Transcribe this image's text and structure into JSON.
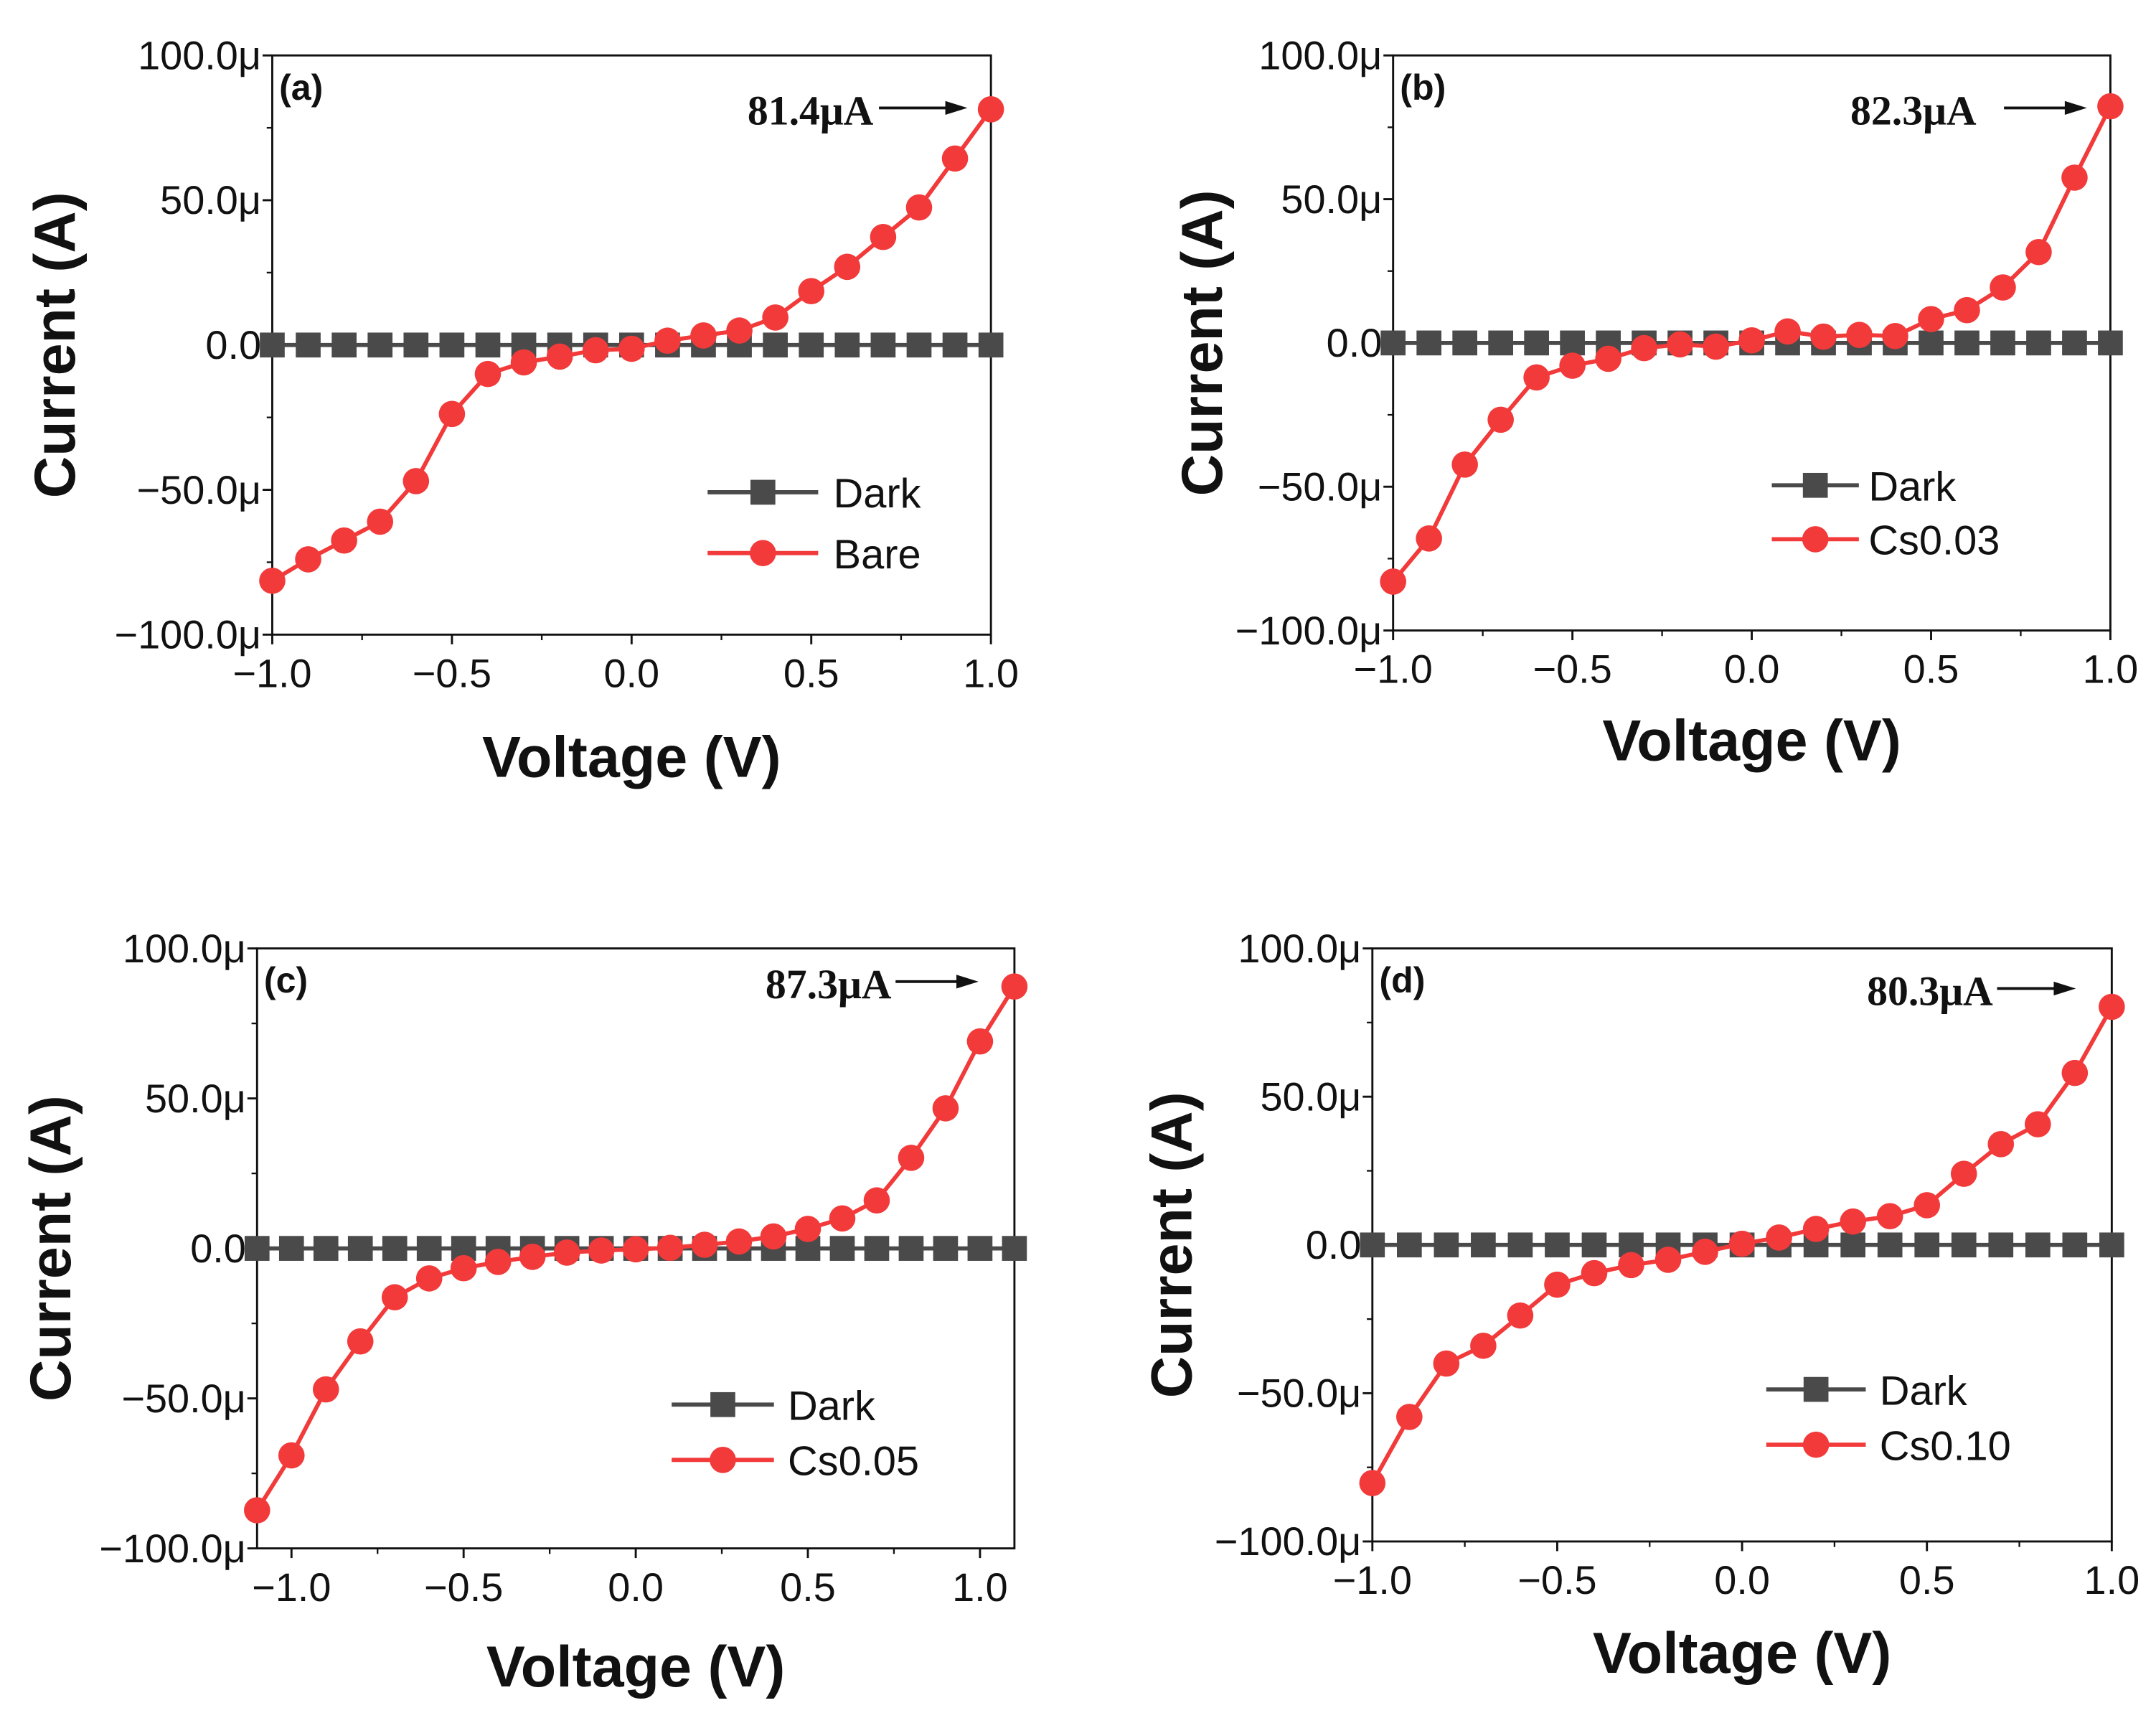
{
  "colors": {
    "dark": "#4a4a4a",
    "light": "#f23a3a",
    "axis": "#111111"
  },
  "chart_data": [
    {
      "type": "line",
      "panel_label": "(a)",
      "xlabel": "Voltage (V)",
      "ylabel": "Current (A)",
      "xlim": [
        -1.0,
        1.0
      ],
      "ylim": [
        -100,
        100
      ],
      "xticks": [
        "-1.0",
        "-0.5",
        "0.0",
        "0.5",
        "1.0"
      ],
      "xtick_values": [
        -1.0,
        -0.5,
        0.0,
        0.5,
        1.0
      ],
      "yticks": [
        "-100.0μ",
        "-50.0μ",
        "0.0",
        "50.0μ",
        "100.0μ"
      ],
      "ytick_values": [
        -100,
        -50,
        0,
        50,
        100
      ],
      "y_units": "μA",
      "legend_position": "bottom-right",
      "annotation": "81.4μA",
      "x": [
        -1.0,
        -0.9,
        -0.8,
        -0.7,
        -0.6,
        -0.5,
        -0.4,
        -0.3,
        -0.2,
        -0.1,
        0.0,
        0.1,
        0.2,
        0.3,
        0.4,
        0.5,
        0.6,
        0.7,
        0.8,
        0.9,
        1.0
      ],
      "series": [
        {
          "name": "Dark",
          "marker": "square",
          "values": [
            0,
            0,
            0,
            0,
            0,
            0,
            0,
            0,
            0,
            0,
            0,
            0,
            0,
            0,
            0,
            0,
            0,
            0,
            0,
            0,
            0
          ]
        },
        {
          "name": "Bare",
          "marker": "circle",
          "values": [
            -81.4,
            -74,
            -67.5,
            -61,
            -47,
            -23.8,
            -10,
            -6,
            -4,
            -1.8,
            -1.3,
            1.5,
            3.3,
            5,
            9.5,
            18.6,
            27,
            37.3,
            47.5,
            64.4,
            81.4
          ]
        }
      ]
    },
    {
      "type": "line",
      "panel_label": "(b)",
      "xlabel": "Voltage (V)",
      "ylabel": "Current (A)",
      "xlim": [
        -1.0,
        1.0
      ],
      "ylim": [
        -100,
        100
      ],
      "xticks": [
        "-1.0",
        "-0.5",
        "0.0",
        "0.5",
        "1.0"
      ],
      "xtick_values": [
        -1.0,
        -0.5,
        0.0,
        0.5,
        1.0
      ],
      "yticks": [
        "-100.0μ",
        "-50.0μ",
        "0.0",
        "50.0μ",
        "100.0μ"
      ],
      "ytick_values": [
        -100,
        -50,
        0,
        50,
        100
      ],
      "y_units": "μA",
      "legend_position": "bottom-right",
      "annotation": "82.3μA",
      "x": [
        -1.0,
        -0.9,
        -0.8,
        -0.7,
        -0.6,
        -0.5,
        -0.4,
        -0.3,
        -0.2,
        -0.1,
        0.0,
        0.1,
        0.2,
        0.3,
        0.4,
        0.5,
        0.6,
        0.7,
        0.8,
        0.9,
        1.0
      ],
      "series": [
        {
          "name": "Dark",
          "marker": "square",
          "values": [
            0,
            0,
            0,
            0,
            0,
            0,
            0,
            0,
            0,
            0,
            0,
            0,
            0,
            0,
            0,
            0,
            0,
            0,
            0,
            0,
            0
          ]
        },
        {
          "name": "Cs0.03",
          "marker": "circle",
          "values": [
            -83,
            -68,
            -42.3,
            -26.7,
            -12,
            -7.9,
            -5.5,
            -1.8,
            -0.5,
            -1.3,
            0.9,
            4,
            2.2,
            2.8,
            2.4,
            8.3,
            11.4,
            19.3,
            31.6,
            57.5,
            82.3
          ]
        }
      ]
    },
    {
      "type": "line",
      "panel_label": "(c)",
      "xlabel": "Voltage (V)",
      "ylabel": "Current (A)",
      "xlim": [
        -1.1,
        1.1
      ],
      "ylim": [
        -100,
        100
      ],
      "xticks": [
        "-1.0",
        "-0.5",
        "0.0",
        "0.5",
        "1.0"
      ],
      "xtick_values": [
        -1.0,
        -0.5,
        0.0,
        0.5,
        1.0
      ],
      "yticks": [
        "-100.0μ",
        "-50.0μ",
        "0.0",
        "50.0μ",
        "100.0μ"
      ],
      "ytick_values": [
        -100,
        -50,
        0,
        50,
        100
      ],
      "y_units": "μA",
      "legend_position": "bottom-right",
      "annotation": "87.3μA",
      "x": [
        -1.1,
        -1.0,
        -0.9,
        -0.8,
        -0.7,
        -0.6,
        -0.5,
        -0.4,
        -0.3,
        -0.2,
        -0.1,
        0.0,
        0.1,
        0.2,
        0.3,
        0.4,
        0.5,
        0.6,
        0.7,
        0.8,
        0.9,
        1.0,
        1.1
      ],
      "series": [
        {
          "name": "Dark",
          "marker": "square",
          "values": [
            0,
            0,
            0,
            0,
            0,
            0,
            0,
            0,
            0,
            0,
            0,
            0,
            0,
            0,
            0,
            0,
            0,
            0,
            0,
            0,
            0,
            0,
            0
          ]
        },
        {
          "name": "Cs0.05",
          "marker": "circle",
          "values": [
            -87.3,
            -69,
            -47,
            -31,
            -16.3,
            -10,
            -6.6,
            -4.5,
            -2.8,
            -1.4,
            -0.7,
            -0.3,
            0.2,
            1.2,
            2.3,
            4,
            6.5,
            10,
            16,
            30.2,
            46.7,
            69,
            87.3
          ]
        }
      ]
    },
    {
      "type": "line",
      "panel_label": "(d)",
      "xlabel": "Voltage (V)",
      "ylabel": "Current (A)",
      "xlim": [
        -1.0,
        1.0
      ],
      "ylim": [
        -100,
        100
      ],
      "xticks": [
        "-1.0",
        "-0.5",
        "0.0",
        "0.5",
        "1.0"
      ],
      "xtick_values": [
        -1.0,
        -0.5,
        0.0,
        0.5,
        1.0
      ],
      "yticks": [
        "-100.0μ",
        "-50.0μ",
        "0.0",
        "50.0μ",
        "100.0μ"
      ],
      "ytick_values": [
        -100,
        -50,
        0,
        50,
        100
      ],
      "y_units": "μA",
      "legend_position": "bottom-right",
      "annotation": "80.3μA",
      "x": [
        -1.0,
        -0.9,
        -0.8,
        -0.7,
        -0.6,
        -0.5,
        -0.4,
        -0.3,
        -0.2,
        -0.1,
        0.0,
        0.1,
        0.2,
        0.3,
        0.4,
        0.5,
        0.6,
        0.7,
        0.8,
        0.9,
        1.0
      ],
      "series": [
        {
          "name": "Dark",
          "marker": "square",
          "values": [
            0,
            0,
            0,
            0,
            0,
            0,
            0,
            0,
            0,
            0,
            0,
            0,
            0,
            0,
            0,
            0,
            0,
            0,
            0,
            0,
            0
          ]
        },
        {
          "name": "Cs0.10",
          "marker": "circle",
          "values": [
            -80.3,
            -58,
            -40,
            -34,
            -23.8,
            -13.4,
            -9.5,
            -6.8,
            -5,
            -2.3,
            0.4,
            2.5,
            5.4,
            7.9,
            9.7,
            13.4,
            24,
            34,
            40.7,
            58,
            80.3
          ]
        }
      ]
    }
  ]
}
